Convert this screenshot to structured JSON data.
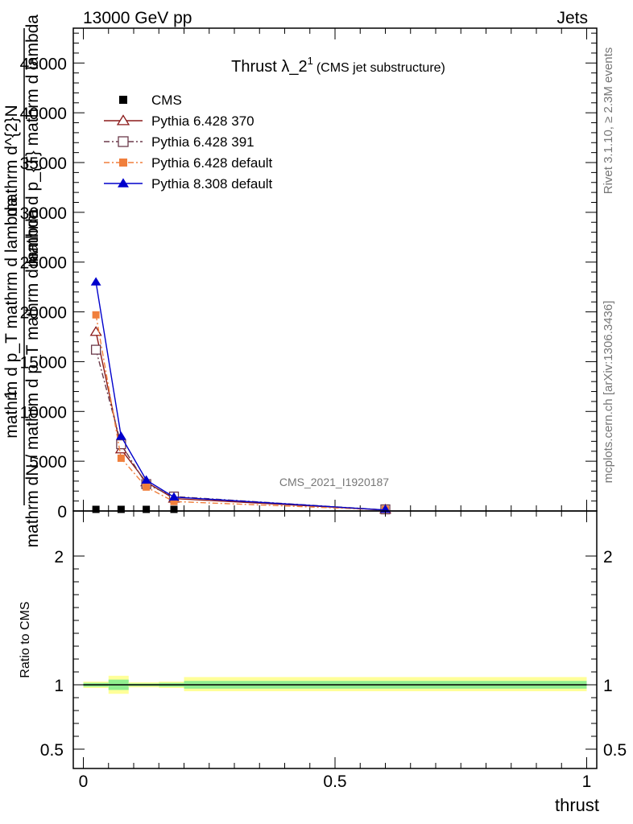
{
  "header": {
    "left": "13000 GeV pp",
    "right": "Jets"
  },
  "side_text": {
    "rivet": "Rivet 3.1.10, ≥ 2.3M events",
    "mcplots": "mcplots.cern.ch [arXiv:1306.3436]"
  },
  "watermark": "CMS_2021_I1920187",
  "chart_data": [
    {
      "type": "line",
      "title": "Thrust λ_2",
      "title_superscript": "1",
      "title_suffix": "(CMS jet substructure)",
      "ylabel_numerator": "1",
      "ylabel_denominator_lines": [
        "mathrm dN / mathrm d p_T mathrm d lambda",
        "mathrm d p_T mathrm d lambda"
      ],
      "ylabel_top_lines": [
        "mathrm d^{2}N",
        "mathrm d p_{T} mathrm d lambda"
      ],
      "xlabel": "thrust",
      "xlim": [
        -0.02,
        1.02
      ],
      "ylim": [
        0,
        48500
      ],
      "yticks": [
        0,
        5000,
        10000,
        15000,
        20000,
        25000,
        30000,
        35000,
        40000,
        45000
      ],
      "ytick_labels": [
        "0",
        "5000",
        "10000",
        "15000",
        "20000",
        "25000",
        "30000",
        "35000",
        "40000",
        "45000"
      ],
      "grid": false,
      "legend_position": "top-left",
      "series": [
        {
          "name": "CMS",
          "color": "#000000",
          "marker": "square-filled",
          "line": "none",
          "x": [
            0.025,
            0.075,
            0.125,
            0.18,
            0.6
          ],
          "y": [
            50,
            50,
            50,
            50,
            50
          ]
        },
        {
          "name": "Pythia 6.428 370",
          "color": "#8b1a1a",
          "marker": "triangle-open",
          "line": "solid",
          "x": [
            0.025,
            0.075,
            0.125,
            0.18,
            0.6
          ],
          "y": [
            18000,
            6200,
            2900,
            1250,
            100
          ]
        },
        {
          "name": "Pythia 6.428 391",
          "color": "#6b3a4a",
          "marker": "square-open",
          "line": "dashdot",
          "x": [
            0.025,
            0.075,
            0.125,
            0.18,
            0.6
          ],
          "y": [
            16200,
            6700,
            2700,
            1450,
            100
          ]
        },
        {
          "name": "Pythia 6.428 default",
          "color": "#f07f3c",
          "marker": "square-filled",
          "line": "dashdot",
          "x": [
            0.025,
            0.075,
            0.125,
            0.18,
            0.6
          ],
          "y": [
            19700,
            5300,
            2400,
            950,
            100
          ]
        },
        {
          "name": "Pythia 8.308 default",
          "color": "#0000cc",
          "marker": "triangle-filled",
          "line": "solid",
          "x": [
            0.025,
            0.075,
            0.125,
            0.18,
            0.6
          ],
          "y": [
            23000,
            7500,
            3100,
            1400,
            100
          ]
        }
      ]
    },
    {
      "type": "line",
      "ylabel": "Ratio to CMS",
      "xlabel": "thrust",
      "xlim": [
        -0.02,
        1.02
      ],
      "ylim": [
        0.35,
        2.35
      ],
      "yticks": [
        0.5,
        1,
        2
      ],
      "ytick_labels": [
        "0.5",
        "1",
        "2"
      ],
      "xticks": [
        0,
        0.5,
        1
      ],
      "xtick_labels": [
        "0",
        "0.5",
        "1"
      ],
      "reference": 1,
      "bands": [
        {
          "x0": 0.0,
          "x1": 0.05,
          "inner": [
            0.985,
            1.015
          ],
          "outer": [
            0.975,
            1.025
          ]
        },
        {
          "x0": 0.05,
          "x1": 0.09,
          "inner": [
            0.96,
            1.04
          ],
          "outer": [
            0.93,
            1.07
          ]
        },
        {
          "x0": 0.09,
          "x1": 0.15,
          "inner": [
            0.99,
            1.01
          ],
          "outer": [
            0.98,
            1.02
          ]
        },
        {
          "x0": 0.15,
          "x1": 0.2,
          "inner": [
            0.985,
            1.015
          ],
          "outer": [
            0.975,
            1.025
          ]
        },
        {
          "x0": 0.2,
          "x1": 1.0,
          "inner": [
            0.97,
            1.03
          ],
          "outer": [
            0.95,
            1.06
          ]
        }
      ],
      "inner_color": "#90ee90",
      "outer_color": "#ffff99"
    }
  ]
}
